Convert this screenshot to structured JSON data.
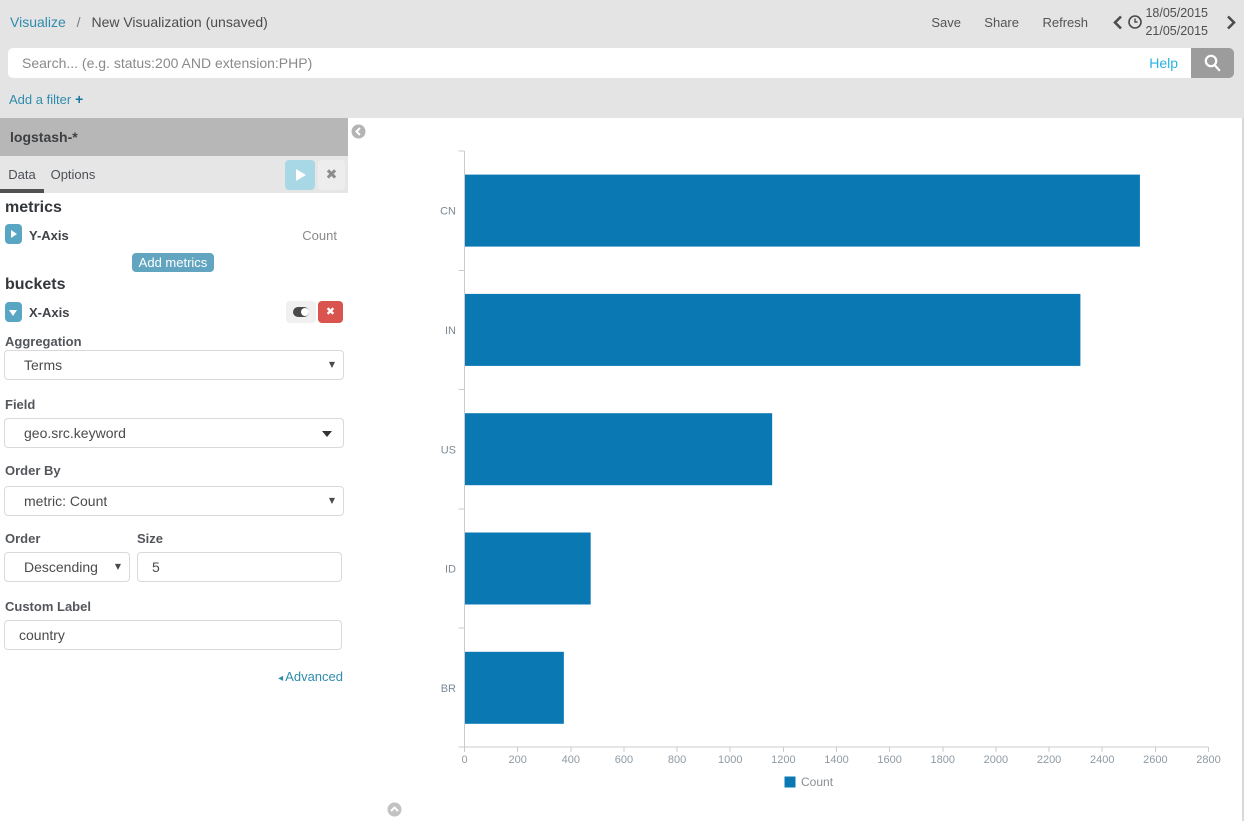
{
  "breadcrumb": {
    "section": "Visualize",
    "separator": "/",
    "page": "New Visualization (unsaved)"
  },
  "topnav": {
    "save_label": "Save",
    "share_label": "Share",
    "refresh_label": "Refresh",
    "date_from": "18/05/2015",
    "date_to": "21/05/2015"
  },
  "search": {
    "placeholder": "Search... (e.g. status:200 AND extension:PHP)",
    "value": "",
    "help_label": "Help"
  },
  "filter_bar": {
    "add_filter_label": "Add a filter",
    "plus_icon": "+"
  },
  "sidebar": {
    "index_pattern": "logstash-*",
    "tabs": [
      {
        "label": "Data",
        "active": true
      },
      {
        "label": "Options",
        "active": false
      }
    ],
    "close_icon": "✖",
    "metrics": {
      "heading": "metrics",
      "row_label": "Y-Axis",
      "row_value": "Count",
      "add_button_label": "Add metrics"
    },
    "buckets": {
      "heading": "buckets",
      "row_label": "X-Axis",
      "remove_icon": "✖"
    },
    "form": {
      "aggregation": {
        "label": "Aggregation",
        "value": "Terms"
      },
      "field": {
        "label": "Field",
        "value": "geo.src.keyword"
      },
      "order_by": {
        "label": "Order By",
        "value": "metric: Count"
      },
      "order": {
        "label": "Order",
        "value": "Descending"
      },
      "size": {
        "label": "Size",
        "value": "5"
      },
      "custom_label": {
        "label": "Custom Label",
        "value": "country"
      },
      "advanced_label": "Advanced",
      "advanced_icon": "◂",
      "select_caret_icon": "▼"
    }
  },
  "chart_data": {
    "type": "bar",
    "orientation": "horizontal",
    "categories": [
      "CN",
      "IN",
      "US",
      "ID",
      "BR"
    ],
    "values": [
      2540,
      2316,
      1156,
      473,
      372
    ],
    "series_name": "Count",
    "value_axis": {
      "min": 0,
      "max": 2800,
      "tick_interval": 200
    },
    "x_ticks": [
      0,
      200,
      400,
      600,
      800,
      1000,
      1200,
      1400,
      1600,
      1800,
      2000,
      2200,
      2400,
      2600,
      2800
    ],
    "bar_color": "#0978b3",
    "legend_position": "bottom",
    "grid": false
  },
  "colors": {
    "bar": "#0978b3",
    "axis_line": "#cbcbcb",
    "category_label": "#7d8a94",
    "tick_label": "#8e9aa4",
    "legend_text": "#8a8f94"
  }
}
